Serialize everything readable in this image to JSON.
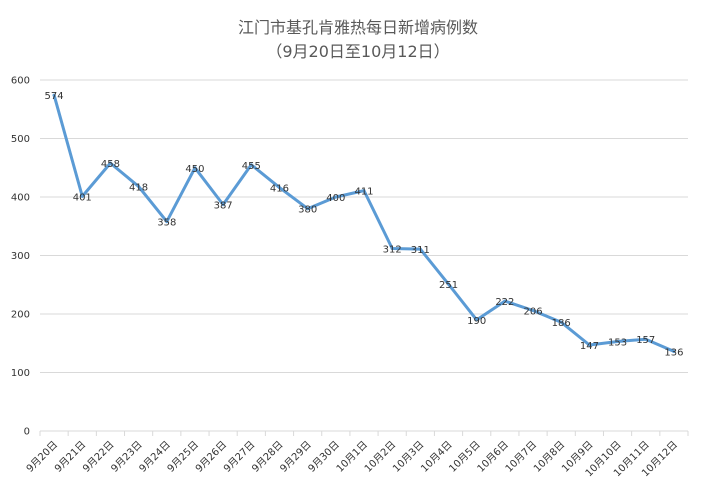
{
  "chart_data": {
    "type": "line",
    "title": "江门市基孔肯雅热每日新增病例数",
    "subtitle": "（9月20日至10月12日）",
    "categories": [
      "9月20日",
      "9月21日",
      "9月22日",
      "9月23日",
      "9月24日",
      "9月25日",
      "9月26日",
      "9月27日",
      "9月28日",
      "9月29日",
      "9月30日",
      "10月1日",
      "10月2日",
      "10月3日",
      "10月4日",
      "10月5日",
      "10月6日",
      "10月7日",
      "10月8日",
      "10月9日",
      "10月10日",
      "10月11日",
      "10月12日"
    ],
    "series": [
      {
        "values": [
          574,
          401,
          458,
          418,
          358,
          450,
          387,
          455,
          416,
          380,
          400,
          411,
          312,
          311,
          251,
          190,
          222,
          206,
          186,
          147,
          153,
          157,
          136
        ],
        "color": "#5b9bd5"
      }
    ],
    "ylim": [
      0,
      600
    ],
    "yticks": [
      0,
      100,
      200,
      300,
      400,
      500,
      600
    ],
    "grid": true,
    "legend": "none"
  }
}
